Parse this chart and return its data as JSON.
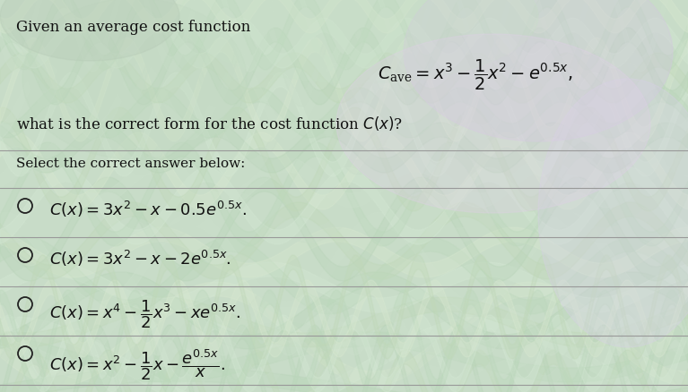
{
  "bg_base": "#c8dcc8",
  "bg_wave_colors": [
    "#c0d8c0",
    "#d0e4d0",
    "#c8dcc8"
  ],
  "text_color": "#111111",
  "title_line1": "Given an average cost function",
  "cave_formula": "$C_{\\mathregular{ave}} = x^3 - \\dfrac{1}{2}x^2 - e^{0.5x},$",
  "question": "what is the correct form for the cost function $C(x)$?",
  "select_text": "Select the correct answer below:",
  "options": [
    "$C(x) = 3x^2 - x - 0.5e^{0.5x}.$",
    "$C(x) = 3x^2 - x - 2e^{0.5x}.$",
    "$C(x) = x^4 - \\dfrac{1}{2}x^3 - xe^{0.5x}.$",
    "$C(x) = x^2 - \\dfrac{1}{2}x - \\dfrac{e^{0.5x}}{x}.$"
  ],
  "divider_color": "#999999",
  "circle_color": "#222222",
  "font_size_title": 12,
  "font_size_formula": 14,
  "font_size_question": 12,
  "font_size_select": 11,
  "font_size_options": 13,
  "fig_width": 7.67,
  "fig_height": 4.38,
  "dpi": 100
}
